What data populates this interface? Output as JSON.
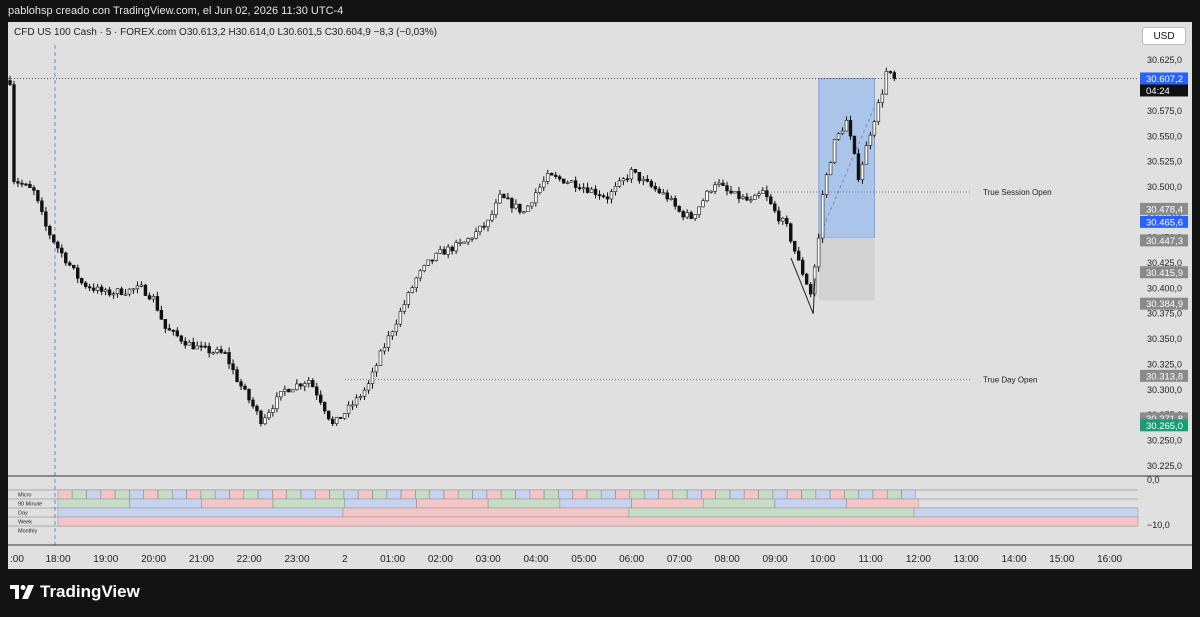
{
  "header": {
    "attribution": "pablohsp creado con TradingView.com, el Jun 02, 2026 11:30 UTC-4"
  },
  "symbol": {
    "legend": "CFD US 100 Cash · 5 · FOREX.com  O30.613,2  H30.614,0  L30.601,5  C30.604,9  −8,3 (−0,03%)"
  },
  "currency_button": "USD",
  "branding": "TradingView",
  "colors": {
    "up_body": "#ffffff",
    "down_body": "#111111",
    "wick": "#111111",
    "box_upper": "#aac4ea",
    "box_lower": "#d2d2d2",
    "price_tag_blue": "#2962ff",
    "price_tag_gray": "#8a8a8a",
    "price_tag_green": "#1a9c77"
  },
  "chart_data": {
    "type": "candlestick",
    "timeframe": "5",
    "x_tick_labels": [
      ":00",
      "18:00",
      "19:00",
      "20:00",
      "21:00",
      "22:00",
      "23:00",
      "2",
      "01:00",
      "02:00",
      "03:00",
      "04:00",
      "05:00",
      "06:00",
      "07:00",
      "08:00",
      "09:00",
      "10:00",
      "11:00",
      "12:00",
      "13:00",
      "14:00",
      "15:00",
      "16:00"
    ],
    "y_tick_labels": [
      "30.625,0",
      "30.600,0",
      "30.575,0",
      "30.550,0",
      "30.525,0",
      "30.500,0",
      "30.475,0",
      "30.450,0",
      "30.425,0",
      "30.400,0",
      "30.375,0",
      "30.350,0",
      "30.325,0",
      "30.300,0",
      "30.275,0",
      "30.250,0",
      "30.225,0"
    ],
    "ylim": [
      30215,
      30640
    ],
    "close_path": [
      [
        "17:00",
        30510
      ],
      [
        "17:30",
        30495
      ],
      [
        "17:45",
        30460
      ],
      [
        "18:00",
        30440
      ],
      [
        "18:30",
        30405
      ],
      [
        "19:00",
        30395
      ],
      [
        "19:45",
        30400
      ],
      [
        "20:00",
        30390
      ],
      [
        "20:15",
        30360
      ],
      [
        "20:45",
        30345
      ],
      [
        "21:00",
        30340
      ],
      [
        "21:30",
        30335
      ],
      [
        "21:45",
        30310
      ],
      [
        "22:00",
        30290
      ],
      [
        "22:15",
        30270
      ],
      [
        "22:45",
        30300
      ],
      [
        "23:00",
        30305
      ],
      [
        "23:15",
        30310
      ],
      [
        "23:30",
        30290
      ],
      [
        "23:45",
        30265
      ],
      [
        "00:15",
        30290
      ],
      [
        "00:30",
        30305
      ],
      [
        "00:45",
        30335
      ],
      [
        "01:00",
        30360
      ],
      [
        "01:15",
        30385
      ],
      [
        "01:30",
        30410
      ],
      [
        "01:45",
        30425
      ],
      [
        "02:00",
        30435
      ],
      [
        "02:30",
        30445
      ],
      [
        "03:00",
        30465
      ],
      [
        "03:15",
        30490
      ],
      [
        "03:45",
        30475
      ],
      [
        "04:00",
        30495
      ],
      [
        "04:15",
        30510
      ],
      [
        "04:45",
        30505
      ],
      [
        "05:00",
        30500
      ],
      [
        "05:15",
        30495
      ],
      [
        "05:30",
        30490
      ],
      [
        "06:00",
        30515
      ],
      [
        "06:15",
        30505
      ],
      [
        "06:45",
        30490
      ],
      [
        "07:00",
        30475
      ],
      [
        "07:15",
        30470
      ],
      [
        "07:45",
        30505
      ],
      [
        "08:00",
        30495
      ],
      [
        "08:30",
        30485
      ],
      [
        "08:45",
        30495
      ],
      [
        "09:00",
        30475
      ],
      [
        "09:15",
        30460
      ],
      [
        "09:30",
        30425
      ],
      [
        "09:45",
        30395
      ],
      [
        "09:55",
        30450
      ],
      [
        "10:00",
        30495
      ],
      [
        "10:15",
        30545
      ],
      [
        "10:30",
        30565
      ],
      [
        "10:45",
        30510
      ],
      [
        "11:00",
        30555
      ],
      [
        "11:15",
        30595
      ],
      [
        "11:20",
        30614
      ],
      [
        "11:30",
        30605
      ]
    ],
    "current_price": "30.607,2",
    "countdown": "04:24",
    "price_tags": [
      {
        "label": "30.478,4",
        "style": "gray"
      },
      {
        "label": "30.465,6",
        "style": "blue"
      },
      {
        "label": "30.447,3",
        "style": "gray"
      },
      {
        "label": "30.415,9",
        "style": "gray"
      },
      {
        "label": "30.384,9",
        "style": "gray"
      },
      {
        "label": "30.313,8",
        "style": "gray"
      },
      {
        "label": "30.271,8",
        "style": "gray"
      },
      {
        "label": "30.265,0",
        "style": "green"
      }
    ],
    "levels": [
      {
        "name": "True Session Open",
        "price": 30495
      },
      {
        "name": "True Day Open",
        "price": 30310
      }
    ],
    "position_box": {
      "entry": 30450,
      "target": 30607,
      "stop": 30388,
      "start": "09:55",
      "end": "11:05"
    }
  },
  "indicator": {
    "rows": [
      "Micro",
      "90 Minute",
      "Day",
      "Week",
      "Monthly"
    ],
    "scale_labels": [
      "0,0",
      "−10,0"
    ]
  }
}
